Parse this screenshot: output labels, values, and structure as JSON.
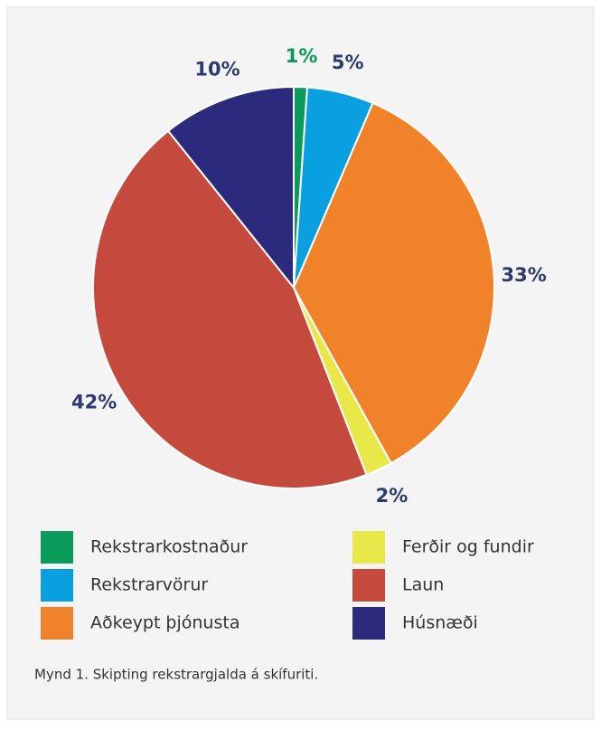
{
  "chart_data": {
    "type": "pie",
    "categories": [
      "Rekstrarkostnaður",
      "Rekstrarvörur",
      "Aðkeypt þjónusta",
      "Ferðir og fundir",
      "Laun",
      "Húsnæði"
    ],
    "values": [
      1,
      5,
      33,
      2,
      42,
      10
    ],
    "value_labels": [
      "1%",
      "5%",
      "33%",
      "2%",
      "42%",
      "10%"
    ],
    "colors": [
      "#0a9a5a",
      "#0aa0e0",
      "#f0832a",
      "#e8e84a",
      "#c44a3e",
      "#2c2a7c"
    ],
    "label_colors": [
      "#0a9a5a",
      "#2c3a6e",
      "#2c3a6e",
      "#2c3a6e",
      "#2c3a6e",
      "#2c3a6e"
    ],
    "legend": "bottom",
    "caption": "Mynd 1. Skipting rekstrargjalda á skífuriti."
  }
}
